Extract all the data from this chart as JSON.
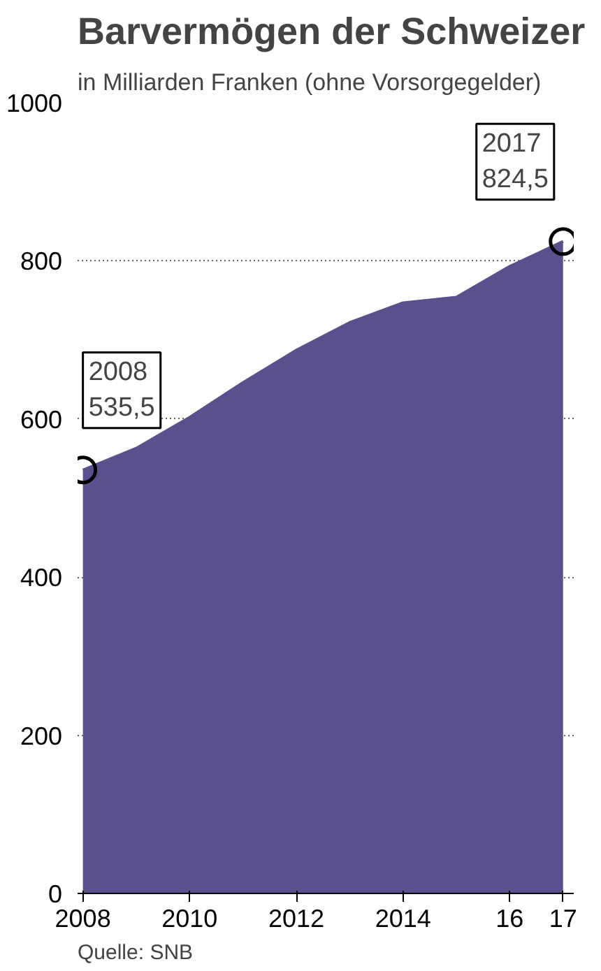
{
  "chart_data": {
    "type": "area",
    "title": "Barvermögen der Schweizer",
    "subtitle": "in Milliarden Franken (ohne Vorsorgegelder)",
    "x": [
      2008,
      2009,
      2010,
      2011,
      2012,
      2013,
      2014,
      2015,
      2016,
      2017
    ],
    "series": [
      {
        "color": "#5b4f8e",
        "values": [
          535.5,
          563,
          602,
          646,
          687,
          722,
          747,
          754,
          793,
          824.5
        ]
      }
    ],
    "xlim": [
      2007.9,
      2017.2
    ],
    "xticks": [
      2008,
      2010,
      2012,
      2014,
      {
        "value": 2016,
        "label": "16"
      },
      {
        "value": 2017,
        "label": "17"
      }
    ],
    "ylim": [
      0,
      1000
    ],
    "yticks": [
      0,
      200,
      400,
      600,
      800,
      1000
    ],
    "grid": "y",
    "annotations": [
      {
        "text": "2008\n535,5",
        "x": 2008,
        "y": 535.5
      },
      {
        "text": "2017\n824,5",
        "x": 2017,
        "y": 824.5
      },
      "Quelle: SNB"
    ]
  }
}
